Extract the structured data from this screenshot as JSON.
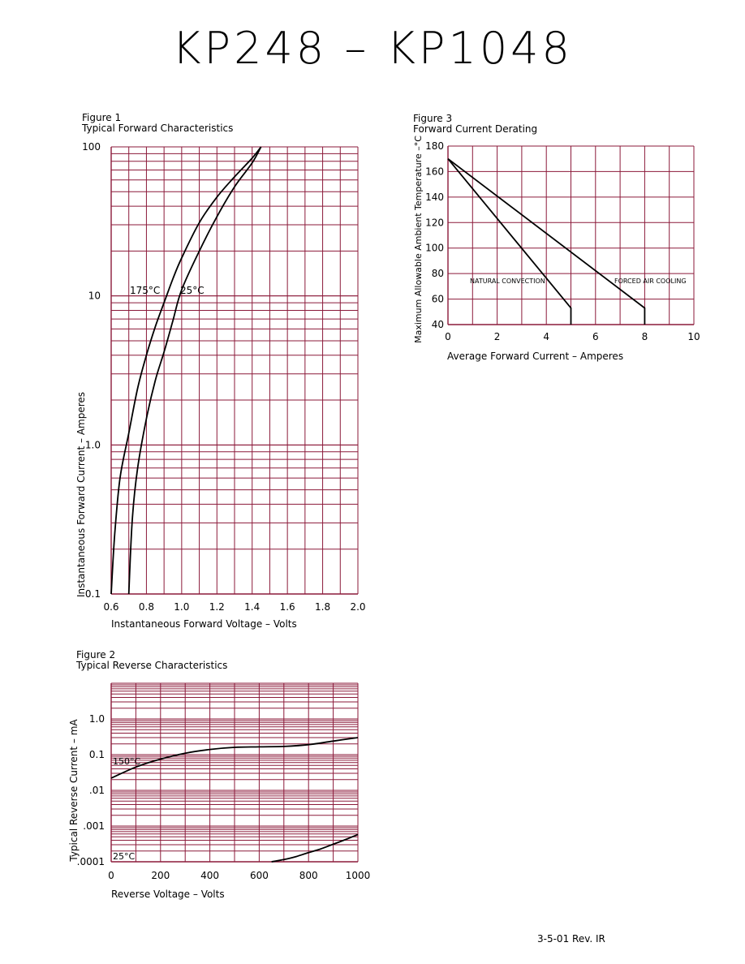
{
  "header": {
    "title": "KP248 – KP1048"
  },
  "footer": {
    "revision": "3-5-01   Rev. IR"
  },
  "colors": {
    "grid": "#8b1a3a",
    "curve": "#000000"
  },
  "chart_data": [
    {
      "id": "fig1",
      "figure": "Figure 1",
      "title": "Typical Forward Characteristics",
      "type": "line",
      "xlabel": "Instantaneous Forward Voltage – Volts",
      "ylabel": "Instantaneous Forward Current – Amperes",
      "xlim": [
        0.6,
        2.0
      ],
      "ylim": [
        0.1,
        100
      ],
      "yscale": "log",
      "xticks": [
        "0.6",
        "0.8",
        "1.0",
        "1.2",
        "1.4",
        "1.6",
        "1.8",
        "2.0"
      ],
      "yticks": [
        "0.1",
        "1.0",
        "10",
        "100"
      ],
      "grid": true,
      "series": [
        {
          "name": "175°C",
          "x": [
            0.6,
            0.62,
            0.65,
            0.7,
            0.75,
            0.8,
            0.85,
            0.9,
            0.95,
            1.0,
            1.1,
            1.2,
            1.3,
            1.4,
            1.45
          ],
          "y": [
            0.1,
            0.25,
            0.6,
            1.2,
            2.4,
            4.0,
            6.2,
            9.0,
            13,
            18,
            31,
            46,
            63,
            84,
            100
          ]
        },
        {
          "name": "25°C",
          "x": [
            0.7,
            0.72,
            0.75,
            0.8,
            0.85,
            0.9,
            0.95,
            1.0,
            1.1,
            1.2,
            1.3,
            1.4,
            1.45
          ],
          "y": [
            0.1,
            0.32,
            0.7,
            1.5,
            2.7,
            4.2,
            6.8,
            11,
            20,
            34,
            54,
            78,
            100
          ]
        }
      ]
    },
    {
      "id": "fig2",
      "figure": "Figure 2",
      "title": "Typical Reverse Characteristics",
      "type": "line",
      "xlabel": "Reverse Voltage – Volts",
      "ylabel": "Typical Reverse Current – mA",
      "xlim": [
        0,
        1000
      ],
      "ylim": [
        0.0001,
        10
      ],
      "yscale": "log",
      "xticks": [
        "0",
        "200",
        "400",
        "600",
        "800",
        "1000"
      ],
      "yticks": [
        ".0001",
        ".001",
        ".01",
        "0.1",
        "1.0"
      ],
      "grid": true,
      "series": [
        {
          "name": "150°C",
          "x": [
            0,
            100,
            200,
            300,
            400,
            500,
            600,
            700,
            800,
            900,
            1000
          ],
          "y": [
            0.022,
            0.045,
            0.075,
            0.11,
            0.14,
            0.16,
            0.165,
            0.17,
            0.19,
            0.24,
            0.3
          ]
        },
        {
          "name": "25°C",
          "x": [
            650,
            700,
            750,
            800,
            850,
            900,
            950,
            1000
          ],
          "y": [
            0.0001,
            0.000115,
            0.00014,
            0.00018,
            0.00023,
            0.00031,
            0.00042,
            0.00058
          ]
        }
      ]
    },
    {
      "id": "fig3",
      "figure": "Figure 3",
      "title": "Forward Current Derating",
      "type": "line",
      "xlabel": "Average Forward Current – Amperes",
      "ylabel": "Maximum Allowable Ambient Temperature –°C",
      "xlim": [
        0,
        10
      ],
      "ylim": [
        40,
        180
      ],
      "xticks": [
        "0",
        "2",
        "4",
        "6",
        "8",
        "10"
      ],
      "yticks": [
        "40",
        "60",
        "80",
        "100",
        "120",
        "140",
        "160",
        "180"
      ],
      "grid": true,
      "annotations": [
        "NATURAL CONVECTION",
        "FORCED AIR COOLING"
      ],
      "series": [
        {
          "name": "NATURAL CONVECTION",
          "x": [
            0,
            5,
            5
          ],
          "y": [
            170,
            53,
            40
          ]
        },
        {
          "name": "FORCED AIR COOLING",
          "x": [
            0,
            8,
            8
          ],
          "y": [
            170,
            53,
            40
          ]
        }
      ]
    }
  ]
}
